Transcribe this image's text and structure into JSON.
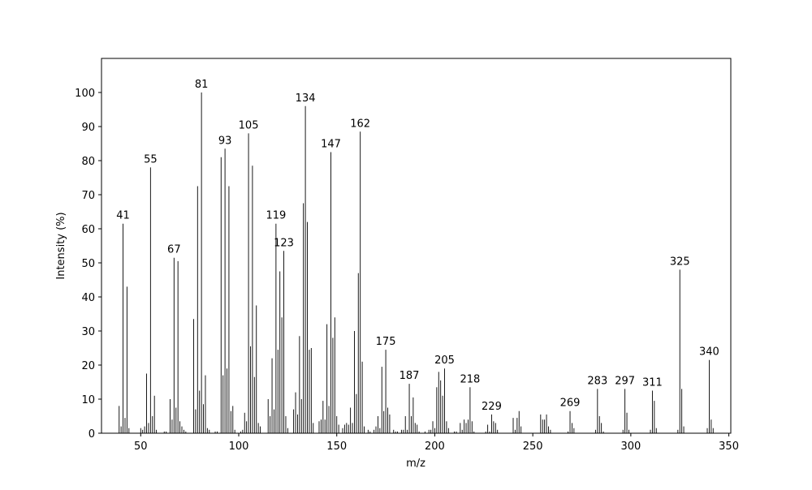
{
  "chart_data": {
    "type": "stem",
    "x_label": "m/z",
    "y_label": "Intensity (%)",
    "color": "#000000",
    "xlim": [
      30,
      351
    ],
    "ylim": [
      0,
      110
    ],
    "xticks": [
      50,
      100,
      150,
      200,
      250,
      300,
      350
    ],
    "yticks": [
      0,
      10,
      20,
      30,
      40,
      50,
      60,
      70,
      80,
      90,
      100
    ],
    "x": [
      39,
      40,
      41,
      42,
      43,
      44,
      50,
      51,
      52,
      53,
      54,
      55,
      56,
      57,
      58,
      62,
      63,
      65,
      66,
      67,
      68,
      69,
      70,
      71,
      72,
      73,
      77,
      78,
      79,
      80,
      81,
      82,
      83,
      84,
      85,
      88,
      89,
      91,
      92,
      93,
      94,
      95,
      96,
      97,
      98,
      101,
      102,
      103,
      104,
      105,
      106,
      107,
      108,
      109,
      110,
      111,
      115,
      116,
      117,
      118,
      119,
      120,
      121,
      122,
      123,
      124,
      125,
      128,
      129,
      130,
      131,
      132,
      133,
      134,
      135,
      136,
      137,
      138,
      141,
      142,
      143,
      144,
      145,
      146,
      147,
      148,
      149,
      150,
      151,
      153,
      154,
      155,
      156,
      157,
      158,
      159,
      160,
      161,
      162,
      163,
      164,
      166,
      167,
      169,
      170,
      171,
      172,
      173,
      174,
      175,
      176,
      177,
      179,
      180,
      181,
      183,
      184,
      185,
      186,
      187,
      188,
      189,
      190,
      191,
      192,
      195,
      197,
      198,
      199,
      200,
      201,
      202,
      203,
      204,
      205,
      206,
      207,
      210,
      211,
      213,
      214,
      215,
      216,
      217,
      218,
      219,
      220,
      226,
      227,
      228,
      229,
      230,
      231,
      232,
      240,
      241,
      242,
      243,
      244,
      254,
      255,
      256,
      257,
      258,
      259,
      268,
      269,
      270,
      271,
      282,
      283,
      284,
      285,
      286,
      296,
      297,
      298,
      299,
      310,
      311,
      312,
      313,
      324,
      325,
      326,
      327,
      339,
      340,
      341,
      342
    ],
    "values": [
      8,
      2,
      61.5,
      4.5,
      43,
      1.5,
      1.5,
      1,
      2,
      17.5,
      3,
      78,
      5,
      11,
      1,
      0.5,
      0.5,
      10,
      4,
      51.5,
      7.5,
      50.5,
      3.5,
      2,
      1,
      0.5,
      33.5,
      7,
      72.5,
      12.5,
      100,
      8.5,
      17,
      1.5,
      1,
      0.5,
      0.5,
      81,
      17,
      83.5,
      19,
      72.5,
      6.5,
      8,
      1,
      0.5,
      1,
      6,
      3.5,
      88,
      25.5,
      78.5,
      16.5,
      37.5,
      3,
      2,
      10,
      5,
      22,
      7,
      61.5,
      24.5,
      47.5,
      34,
      53.5,
      5,
      1.5,
      7,
      12,
      5.5,
      28.5,
      10,
      67.5,
      96,
      62,
      24.5,
      25,
      3,
      3.5,
      4,
      9.5,
      4,
      32,
      8,
      82.5,
      28,
      34,
      5,
      2.5,
      1.5,
      2.5,
      3,
      2.5,
      7.5,
      3,
      30,
      11.5,
      47,
      88.5,
      21,
      2,
      1,
      0.5,
      1,
      2,
      5,
      1.5,
      19.5,
      6.5,
      24.5,
      7.5,
      5.5,
      1,
      0.5,
      0.5,
      1,
      1,
      5,
      1,
      14.5,
      5,
      10.5,
      3,
      2.5,
      0.5,
      0.5,
      1,
      1,
      3.5,
      1.5,
      13.5,
      18,
      15.5,
      11,
      19,
      3.5,
      1.5,
      0.5,
      0.5,
      3,
      1,
      4,
      3,
      4,
      13.5,
      3.5,
      0.5,
      0.5,
      2.5,
      0.5,
      5.5,
      3.5,
      3,
      1,
      4.5,
      1,
      4.5,
      6.5,
      2,
      5.5,
      4,
      4,
      5.5,
      2,
      1,
      0.5,
      6.5,
      3,
      1.5,
      1,
      13,
      5,
      3,
      0.5,
      1,
      13,
      6,
      1,
      1,
      12.5,
      9.5,
      1.5,
      1,
      48,
      13,
      2,
      1.5,
      21.5,
      4,
      1.5
    ],
    "peak_labels": [
      41,
      55,
      67,
      81,
      93,
      105,
      119,
      123,
      134,
      147,
      162,
      175,
      187,
      205,
      218,
      229,
      269,
      283,
      297,
      311,
      325,
      340
    ]
  }
}
